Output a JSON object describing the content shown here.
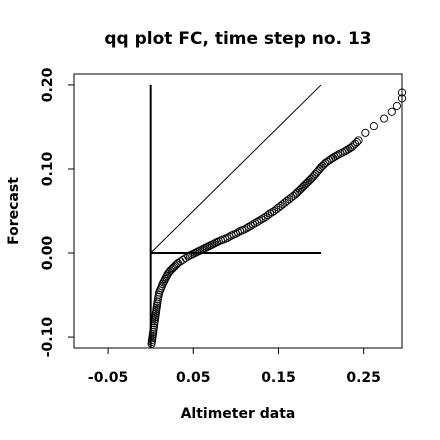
{
  "chart_data": {
    "type": "scatter",
    "title": "qq plot FC, time step no. 13",
    "xlabel": "Altimeter data",
    "ylabel": "Forecast",
    "xlim": [
      -0.09,
      0.295
    ],
    "ylim": [
      -0.113,
      0.213
    ],
    "x_ticks": [
      -0.05,
      0.05,
      0.15,
      0.25
    ],
    "x_tick_labels": [
      "-0.05",
      "0.05",
      "0.15",
      "0.25"
    ],
    "y_ticks": [
      -0.1,
      0.0,
      0.1,
      0.2
    ],
    "y_tick_labels": [
      "-0.10",
      "0.00",
      "0.10",
      "0.20"
    ],
    "grid": false,
    "marker": "open-circle",
    "reference_lines": [
      {
        "kind": "vertical",
        "x": 0,
        "y_from": -0.113,
        "y_to": 0.2
      },
      {
        "kind": "horizontal",
        "y": 0,
        "x_from": 0,
        "x_to": 0.2
      },
      {
        "kind": "diagonal",
        "from": [
          0,
          0
        ],
        "to": [
          0.2,
          0.2
        ]
      }
    ],
    "points": [
      [
        0.001,
        -0.108
      ],
      [
        0.002,
        -0.101
      ],
      [
        0.003,
        -0.094
      ],
      [
        0.004,
        -0.086
      ],
      [
        0.005,
        -0.079
      ],
      [
        0.006,
        -0.072
      ],
      [
        0.007,
        -0.065
      ],
      [
        0.008,
        -0.058
      ],
      [
        0.009,
        -0.052
      ],
      [
        0.01,
        -0.047
      ],
      [
        0.012,
        -0.042
      ],
      [
        0.014,
        -0.037
      ],
      [
        0.016,
        -0.033
      ],
      [
        0.018,
        -0.029
      ],
      [
        0.02,
        -0.025
      ],
      [
        0.023,
        -0.021
      ],
      [
        0.026,
        -0.018
      ],
      [
        0.029,
        -0.015
      ],
      [
        0.032,
        -0.012
      ],
      [
        0.035,
        -0.01
      ],
      [
        0.038,
        -0.008
      ],
      [
        0.041,
        -0.006
      ],
      [
        0.044,
        -0.004
      ],
      [
        0.048,
        -0.002
      ],
      [
        0.052,
        0.0
      ],
      [
        0.056,
        0.002
      ],
      [
        0.06,
        0.004
      ],
      [
        0.064,
        0.006
      ],
      [
        0.068,
        0.008
      ],
      [
        0.072,
        0.01
      ],
      [
        0.076,
        0.012
      ],
      [
        0.08,
        0.014
      ],
      [
        0.085,
        0.016
      ],
      [
        0.09,
        0.018
      ],
      [
        0.095,
        0.021
      ],
      [
        0.1,
        0.023
      ],
      [
        0.105,
        0.026
      ],
      [
        0.11,
        0.028
      ],
      [
        0.115,
        0.031
      ],
      [
        0.12,
        0.034
      ],
      [
        0.125,
        0.037
      ],
      [
        0.13,
        0.04
      ],
      [
        0.135,
        0.043
      ],
      [
        0.14,
        0.047
      ],
      [
        0.145,
        0.05
      ],
      [
        0.15,
        0.054
      ],
      [
        0.155,
        0.058
      ],
      [
        0.16,
        0.062
      ],
      [
        0.165,
        0.066
      ],
      [
        0.17,
        0.07
      ],
      [
        0.175,
        0.075
      ],
      [
        0.18,
        0.08
      ],
      [
        0.185,
        0.085
      ],
      [
        0.19,
        0.09
      ],
      [
        0.195,
        0.096
      ],
      [
        0.2,
        0.102
      ],
      [
        0.205,
        0.107
      ],
      [
        0.212,
        0.112
      ],
      [
        0.22,
        0.117
      ],
      [
        0.228,
        0.121
      ],
      [
        0.236,
        0.126
      ],
      [
        0.244,
        0.134
      ],
      [
        0.252,
        0.143
      ],
      [
        0.262,
        0.151
      ],
      [
        0.274,
        0.16
      ],
      [
        0.283,
        0.168
      ],
      [
        0.289,
        0.175
      ],
      [
        0.295,
        0.184
      ],
      [
        0.295,
        0.191
      ]
    ]
  }
}
